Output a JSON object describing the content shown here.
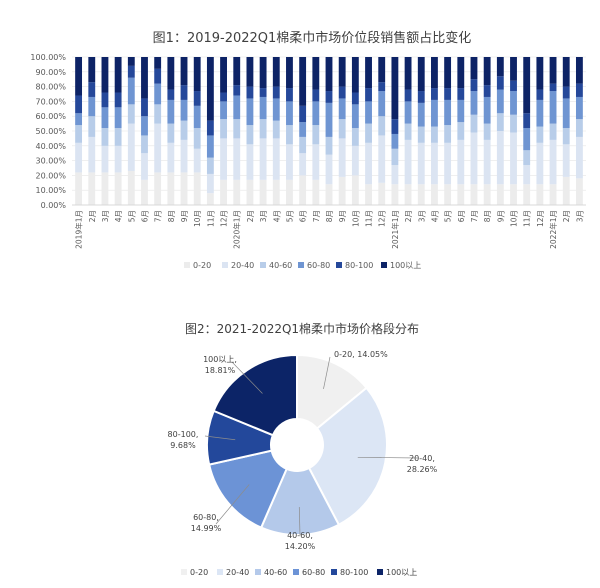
{
  "chart_data": [
    {
      "type": "bar",
      "stacked": "percent",
      "title": "图1：2019-2022Q1棉柔巾市场价位段销售额占比变化",
      "ylim": [
        0,
        100
      ],
      "yticks": [
        "0.00%",
        "10.00%",
        "20.00%",
        "30.00%",
        "40.00%",
        "50.00%",
        "60.00%",
        "70.00%",
        "80.00%",
        "90.00%",
        "100.00%"
      ],
      "categories": [
        "2019年1月",
        "2月",
        "3月",
        "4月",
        "5月",
        "6月",
        "7月",
        "8月",
        "9月",
        "10月",
        "11月",
        "12月",
        "2020年1月",
        "2月",
        "3月",
        "4月",
        "5月",
        "6月",
        "7月",
        "8月",
        "9月",
        "10月",
        "11月",
        "12月",
        "2021年1月",
        "2月",
        "3月",
        "4月",
        "5月",
        "6月",
        "7月",
        "8月",
        "9月",
        "10月",
        "11月",
        "12月",
        "2022年1月",
        "2月",
        "3月"
      ],
      "legend": [
        "0-20",
        "20-40",
        "40-60",
        "60-80",
        "80-100",
        "100以上"
      ],
      "colors": [
        "#ececec",
        "#dbe4f2",
        "#b8cde9",
        "#6f95d2",
        "#25489a",
        "#0d2366"
      ],
      "series": [
        {
          "name": "0-20",
          "values": [
            22,
            22,
            22,
            22,
            23,
            17,
            22,
            22,
            22,
            22,
            8,
            17,
            17,
            17,
            17,
            17,
            17,
            20,
            17,
            14,
            19,
            20,
            14,
            15,
            14,
            14,
            14,
            14,
            14,
            14,
            14,
            14,
            14,
            14,
            14,
            14,
            14,
            19,
            18
          ]
        },
        {
          "name": "20-40",
          "values": [
            20,
            24,
            18,
            18,
            32,
            18,
            33,
            20,
            22,
            16,
            13,
            28,
            28,
            24,
            28,
            28,
            24,
            15,
            24,
            20,
            26,
            20,
            28,
            32,
            13,
            30,
            28,
            28,
            28,
            30,
            35,
            30,
            36,
            35,
            13,
            28,
            30,
            22,
            28
          ]
        },
        {
          "name": "40-60",
          "values": [
            12,
            14,
            12,
            12,
            13,
            12,
            13,
            13,
            13,
            14,
            11,
            13,
            13,
            13,
            13,
            12,
            13,
            11,
            13,
            12,
            13,
            12,
            13,
            13,
            11,
            11,
            11,
            11,
            12,
            12,
            12,
            11,
            12,
            12,
            10,
            11,
            11,
            11,
            12
          ]
        },
        {
          "name": "60-80",
          "values": [
            8,
            13,
            14,
            14,
            18,
            13,
            14,
            16,
            14,
            15,
            15,
            12,
            16,
            18,
            15,
            15,
            16,
            10,
            16,
            23,
            14,
            16,
            15,
            17,
            10,
            15,
            16,
            18,
            17,
            15,
            16,
            18,
            16,
            16,
            15,
            18,
            22,
            20,
            15
          ]
        },
        {
          "name": "80-100",
          "values": [
            12,
            10,
            10,
            10,
            8,
            12,
            10,
            7,
            10,
            10,
            10,
            6,
            7,
            8,
            6,
            8,
            9,
            11,
            8,
            8,
            8,
            8,
            9,
            6,
            10,
            8,
            8,
            8,
            8,
            8,
            8,
            8,
            9,
            7,
            10,
            7,
            5,
            8,
            9
          ]
        },
        {
          "name": "100以上",
          "values": [
            26,
            17,
            24,
            24,
            6,
            28,
            8,
            22,
            19,
            23,
            43,
            24,
            19,
            20,
            21,
            20,
            21,
            33,
            22,
            23,
            20,
            24,
            21,
            17,
            42,
            22,
            23,
            21,
            21,
            21,
            15,
            19,
            13,
            16,
            38,
            22,
            18,
            20,
            18
          ]
        }
      ]
    },
    {
      "type": "pie",
      "donut": true,
      "title": "图2：2021-2022Q1棉柔巾市场价格段分布",
      "categories": [
        "0-20",
        "20-40",
        "40-60",
        "60-80",
        "80-100",
        "100以上"
      ],
      "values": [
        14.05,
        28.26,
        14.2,
        14.99,
        9.68,
        18.81
      ],
      "labels": [
        "0-20, 14.05%",
        "20-40,",
        "28.26%",
        "40-60,",
        "14.20%",
        "60-80,",
        "14.99%",
        "80-100,",
        "9.68%",
        "100以上,",
        "18.81%"
      ],
      "legend": [
        "0-20",
        "20-40",
        "40-60",
        "60-80",
        "80-100",
        "100以上"
      ],
      "colors": [
        "#f0f0f0",
        "#dce6f5",
        "#b4c9ea",
        "#6c93d6",
        "#23489b",
        "#0c2467"
      ]
    }
  ]
}
